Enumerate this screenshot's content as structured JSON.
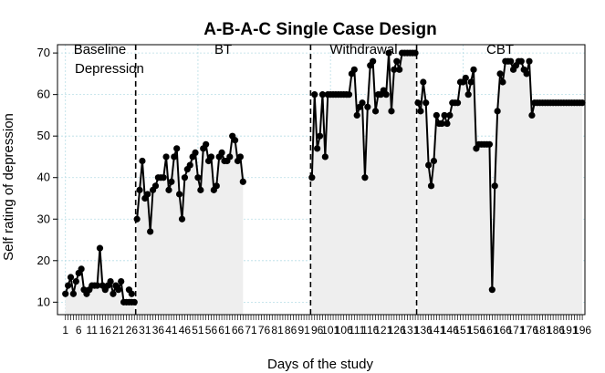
{
  "chart_data": {
    "type": "line",
    "title": "A-B-A-C Single Case Design",
    "xlabel": "Days of the study",
    "ylabel": "Self rating of depression",
    "annotation": "Depression",
    "xlim": [
      -2,
      197
    ],
    "ylim": [
      7,
      72
    ],
    "y_ticks": [
      10,
      20,
      30,
      40,
      50,
      60,
      70
    ],
    "x_tick_labels": [
      "1",
      "6",
      "11",
      "16",
      "21",
      "26",
      "31",
      "36",
      "41",
      "46",
      "51",
      "56",
      "61",
      "66",
      "71",
      "76",
      "81",
      "86",
      "91",
      "96",
      "101",
      "106",
      "111",
      "116",
      "121",
      "126",
      "131",
      "136",
      "141",
      "146",
      "151",
      "156",
      "161",
      "166",
      "171",
      "176",
      "181",
      "186",
      "191",
      "196"
    ],
    "x_tick_values": [
      1,
      6,
      11,
      16,
      21,
      26,
      31,
      36,
      41,
      46,
      51,
      56,
      61,
      66,
      71,
      76,
      81,
      86,
      91,
      96,
      101,
      106,
      111,
      116,
      121,
      126,
      131,
      136,
      141,
      146,
      151,
      156,
      161,
      166,
      171,
      176,
      181,
      186,
      191,
      196
    ],
    "grid": true,
    "phases": [
      {
        "label": "Baseline",
        "start": 1,
        "end": 27
      },
      {
        "label": "BT",
        "start": 28,
        "end": 93
      },
      {
        "label": "Withdrawal",
        "start": 94,
        "end": 133
      },
      {
        "label": "CBT",
        "start": 134,
        "end": 196
      }
    ],
    "phase_lines": [
      27.5,
      93.5,
      133.5
    ],
    "colors": {
      "line": "#000000",
      "fill": "#eeeeee",
      "grid": "#b8dde6",
      "dashed": "#000000"
    },
    "series": [
      {
        "segments": [
          {
            "x": [
              1,
              2,
              3,
              4,
              5,
              6,
              7,
              8,
              9,
              10,
              11,
              12,
              13,
              14,
              15,
              16,
              17,
              18,
              19,
              20,
              21,
              22,
              23,
              24,
              25,
              26,
              27
            ],
            "y": [
              12,
              14,
              16,
              12,
              15,
              17,
              18,
              13,
              12,
              13,
              14,
              14,
              14,
              23,
              14,
              13,
              14,
              15,
              12,
              14,
              13,
              15,
              10,
              10,
              10,
              10,
              10
            ]
          },
          {
            "x": [
              25,
              26
            ],
            "y": [
              13,
              12
            ]
          },
          {
            "x": [
              28,
              29,
              30,
              31,
              32,
              33,
              34,
              35,
              36,
              37,
              38,
              39,
              40,
              41,
              42,
              43,
              44,
              45,
              46,
              47,
              48,
              49,
              50,
              51,
              52,
              53,
              54,
              55,
              56,
              57,
              58,
              59,
              60,
              61,
              62,
              63,
              64,
              65,
              66,
              67,
              68
            ],
            "y": [
              30,
              37,
              44,
              35,
              36,
              27,
              37,
              38,
              40,
              40,
              40,
              45,
              37,
              39,
              45,
              47,
              36,
              30,
              40,
              42,
              43,
              45,
              46,
              40,
              37,
              47,
              48,
              44,
              45,
              37,
              38,
              45,
              46,
              44,
              44,
              45,
              50,
              49,
              44,
              45,
              39
            ]
          },
          {
            "x": [
              94,
              95,
              96,
              97,
              98,
              99,
              100,
              101,
              102,
              103,
              104,
              105,
              106,
              107,
              108,
              109,
              110,
              111,
              112,
              113,
              114,
              115,
              116,
              117,
              118,
              119,
              120,
              121,
              122,
              123,
              124,
              125,
              126,
              127,
              128,
              129,
              130,
              131,
              132,
              133
            ],
            "y": [
              40,
              60,
              47,
              50,
              60,
              45,
              60,
              60,
              60,
              60,
              60,
              60,
              60,
              60,
              60,
              65,
              66,
              55,
              57,
              58,
              40,
              57,
              67,
              68,
              56,
              60,
              60,
              61,
              60,
              70,
              56,
              66,
              68,
              66,
              70,
              70,
              70,
              70,
              70,
              70
            ]
          },
          {
            "x": [
              134,
              135,
              136,
              137,
              138,
              139,
              140,
              141,
              142,
              143,
              144,
              145,
              146,
              147,
              148,
              149,
              150,
              151,
              152,
              153,
              154,
              155,
              156,
              157,
              158,
              159,
              160,
              161,
              162,
              163,
              164,
              165,
              166,
              167,
              168,
              169,
              170,
              171,
              172,
              173,
              174,
              175,
              176,
              177,
              178,
              179,
              180,
              181,
              182,
              183,
              184,
              185,
              186,
              187,
              188,
              189,
              190,
              191,
              192,
              193,
              194,
              195,
              196
            ],
            "y": [
              58,
              56,
              63,
              58,
              43,
              38,
              44,
              55,
              53,
              53,
              55,
              53,
              55,
              58,
              58,
              58,
              63,
              63,
              64,
              60,
              63,
              66,
              47,
              48,
              48,
              48,
              48,
              48,
              13,
              38,
              56,
              65,
              63,
              68,
              68,
              68,
              66,
              67,
              68,
              68,
              66,
              65,
              68,
              55,
              58,
              58,
              58,
              58,
              58,
              58,
              58,
              58,
              58,
              58,
              58,
              58,
              58,
              58,
              58,
              58,
              58,
              58,
              58
            ]
          }
        ]
      }
    ]
  }
}
